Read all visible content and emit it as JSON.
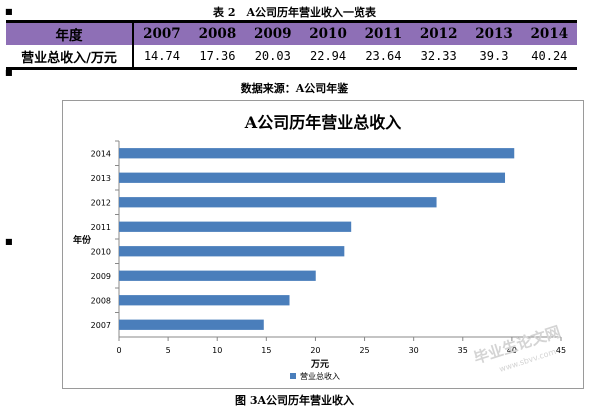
{
  "table": {
    "caption": "表 2　A公司历年营业收入一览表",
    "year_header": "年度",
    "row_label": "营业总收入/万元",
    "years": [
      "2007",
      "2008",
      "2009",
      "2010",
      "2011",
      "2012",
      "2013",
      "2014"
    ],
    "values": [
      "14.74",
      "17.36",
      "20.03",
      "22.94",
      "23.64",
      "32.33",
      "39.3",
      "40.24"
    ],
    "header_color": "#8e6fb6"
  },
  "source_note": "数据来源：A公司年鉴",
  "figure_caption": "图 3A公司历年营业收入",
  "watermark": {
    "line1": "毕业生论文网",
    "line2": "www.sbvv.com"
  },
  "chart_data": {
    "type": "bar",
    "orientation": "horizontal",
    "title": "A公司历年营业总收入",
    "categories": [
      "2007",
      "2008",
      "2009",
      "2010",
      "2011",
      "2012",
      "2013",
      "2014"
    ],
    "series": [
      {
        "name": "营业总收入",
        "values": [
          14.74,
          17.36,
          20.03,
          22.94,
          23.64,
          32.33,
          39.3,
          40.24
        ],
        "color": "#4a7ebb"
      }
    ],
    "xlabel": "万元",
    "ylabel": "年份",
    "xlim": [
      0,
      45
    ],
    "xticks": [
      0,
      5,
      10,
      15,
      20,
      25,
      30,
      35,
      40,
      45
    ],
    "grid": false,
    "legend": "bottom"
  }
}
